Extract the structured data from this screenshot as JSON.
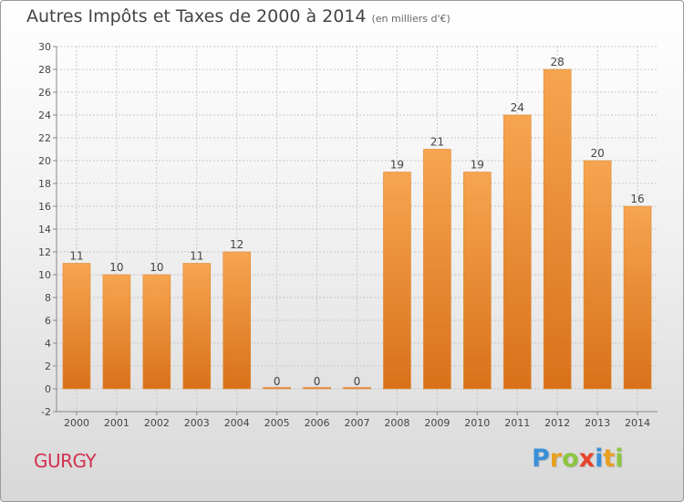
{
  "header": {
    "title": "Autres Impôts et Taxes de 2000 à 2014",
    "subtitle": "(en milliers d'€)"
  },
  "footer": {
    "commune": "GURGY",
    "brand_letters": [
      {
        "ch": "P",
        "color": "#3a8fd8"
      },
      {
        "ch": "r",
        "color": "#e8a020"
      },
      {
        "ch": "o",
        "color": "#8cc63f"
      },
      {
        "ch": "x",
        "color": "#e8452c"
      },
      {
        "ch": "i",
        "color": "#3a8fd8"
      },
      {
        "ch": "t",
        "color": "#e8a020"
      },
      {
        "ch": "i",
        "color": "#8cc63f"
      }
    ]
  },
  "colors": {
    "bar_light": "#f6a550",
    "bar_dark": "#d9711a",
    "grid": "#c8c8c8",
    "axis": "#888888",
    "text": "#444444"
  },
  "chart_data": {
    "type": "bar",
    "categories": [
      "2000",
      "2001",
      "2002",
      "2003",
      "2004",
      "2005",
      "2006",
      "2007",
      "2008",
      "2009",
      "2010",
      "2011",
      "2012",
      "2013",
      "2014"
    ],
    "values": [
      11,
      10,
      10,
      11,
      12,
      0,
      0,
      0,
      19,
      21,
      19,
      24,
      28,
      20,
      16
    ],
    "data_labels": [
      "11",
      "10",
      "10",
      "11",
      "12",
      "0",
      "0",
      "0",
      "19",
      "21",
      "19",
      "24",
      "28",
      "20",
      "16"
    ],
    "yticks": [
      "-2",
      "0",
      "2",
      "4",
      "6",
      "8",
      "10",
      "12",
      "14",
      "16",
      "18",
      "20",
      "22",
      "24",
      "26",
      "28",
      "30"
    ],
    "ylim": [
      -2,
      30
    ],
    "ytick_step": 2,
    "grid": true
  }
}
